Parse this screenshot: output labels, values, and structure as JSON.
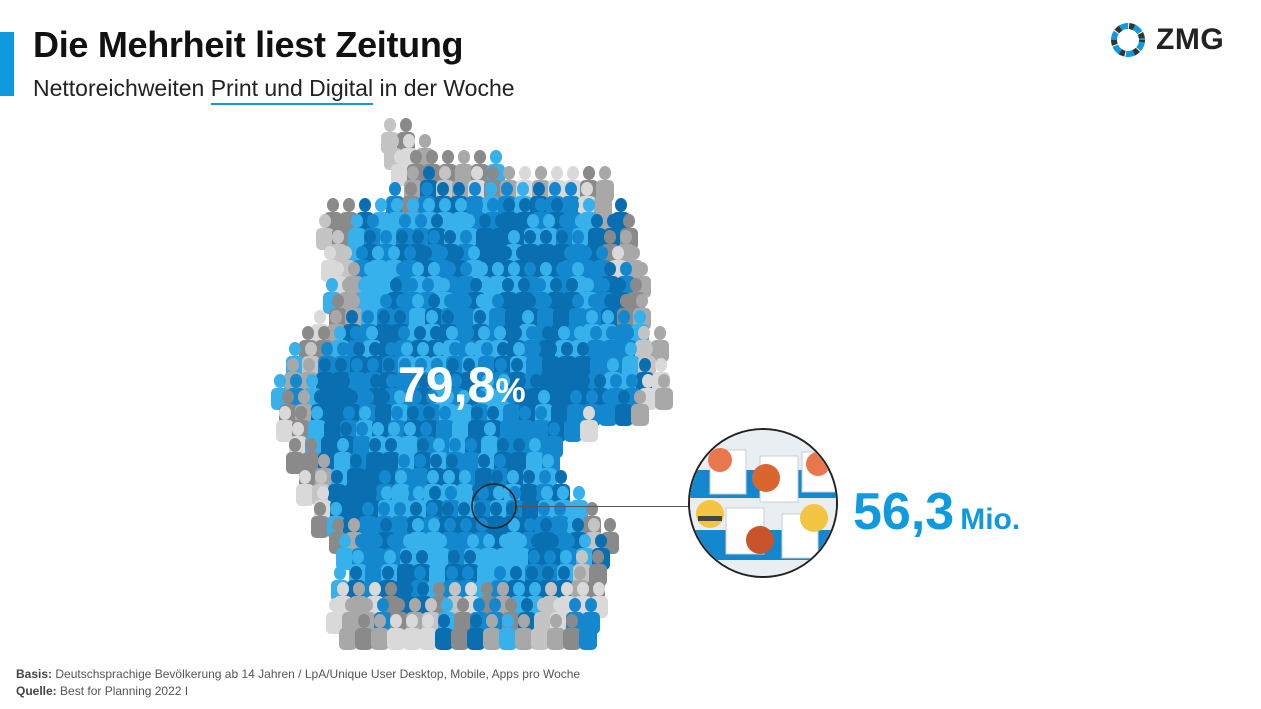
{
  "header": {
    "title": "Die Mehrheit liest Zeitung",
    "subtitle_pre": "Nettoreichweiten ",
    "subtitle_highlight": "Print und Digital",
    "subtitle_post": " in der Woche"
  },
  "logo": {
    "text": "ZMG",
    "icon": "zmg-ring-logo-icon"
  },
  "map": {
    "icon": "germany-people-map-icon",
    "percent_value": "79,8",
    "percent_unit": "%",
    "share": 0.798
  },
  "reach": {
    "value": "56,3",
    "unit": "Mio.",
    "icon": "people-reading-newspaper-icon"
  },
  "footer": {
    "basis_label": "Basis:",
    "basis_text": " Deutschsprachige Bevölkerung ab 14 Jahren / LpA/Unique User Desktop, Mobile, Apps pro Woche",
    "source_label": "Quelle:",
    "source_text": " Best for Planning 2022 I"
  },
  "colors": {
    "accent": "#0f9ae0",
    "blue_dark": "#0a6fb0",
    "blue_mid": "#1488cf",
    "blue_light": "#36b1ec",
    "grey_dark": "#8a8a8a",
    "grey_light": "#d9d9d9"
  }
}
